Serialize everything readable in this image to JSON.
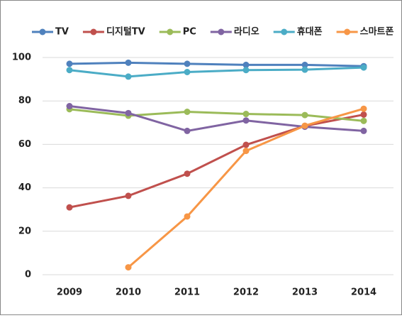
{
  "chart_data": {
    "type": "line",
    "categories": [
      "2009",
      "2010",
      "2011",
      "2012",
      "2013",
      "2014"
    ],
    "series": [
      {
        "name": "TV",
        "color": "#4f81bd",
        "values": [
          97.1,
          97.6,
          97.1,
          96.6,
          96.6,
          96.0
        ]
      },
      {
        "name": "디지털TV",
        "color": "#c0504d",
        "values": [
          31.0,
          36.3,
          46.5,
          59.8,
          68.5,
          73.7
        ]
      },
      {
        "name": "PC",
        "color": "#9bbb59",
        "values": [
          76.2,
          73.2,
          75.0,
          74.0,
          73.5,
          70.8
        ]
      },
      {
        "name": "라디오",
        "color": "#8064a2",
        "values": [
          77.6,
          74.4,
          66.2,
          71.0,
          68.1,
          66.2
        ]
      },
      {
        "name": "휴대폰",
        "color": "#4bacc6",
        "values": [
          94.2,
          91.2,
          93.3,
          94.2,
          94.4,
          95.4
        ]
      },
      {
        "name": "스마트폰",
        "color": "#f79646",
        "values": [
          null,
          3.4,
          26.8,
          57.0,
          68.6,
          76.4
        ]
      }
    ],
    "ylim": [
      0,
      100
    ],
    "yticks": [
      0,
      20,
      40,
      60,
      80,
      100
    ],
    "grid": true,
    "legend": "top"
  }
}
